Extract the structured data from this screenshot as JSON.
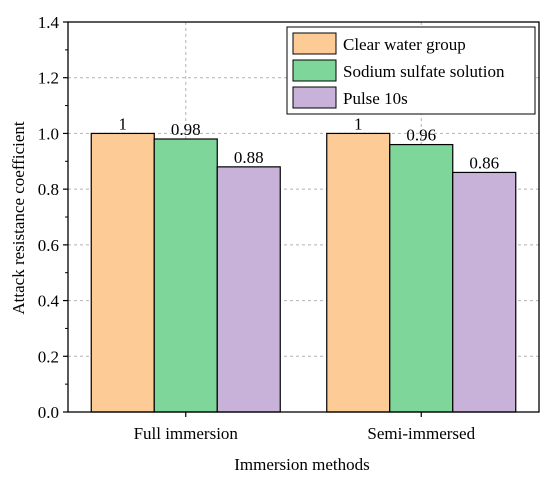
{
  "chart_data": {
    "type": "bar",
    "title": "",
    "xlabel": "Immersion methods",
    "ylabel": "Attack resistance coefficient",
    "ylim": [
      0,
      1.4
    ],
    "yticks": [
      0.0,
      0.2,
      0.4,
      0.6,
      0.8,
      1.0,
      1.2,
      1.4
    ],
    "ytick_labels": [
      "0.0",
      "0.2",
      "0.4",
      "0.6",
      "0.8",
      "1.0",
      "1.2",
      "1.4"
    ],
    "grid": true,
    "legend_position": "top-right",
    "categories": [
      "Full immersion",
      "Semi-immersed"
    ],
    "series": [
      {
        "name": "Clear water group",
        "color": "#FDCB96",
        "values": [
          1,
          1
        ],
        "labels": [
          "1",
          "1"
        ]
      },
      {
        "name": "Sodium sulfate solution",
        "color": "#7FD69A",
        "values": [
          0.98,
          0.96
        ],
        "labels": [
          "0.98",
          "0.96"
        ]
      },
      {
        "name": "Pulse 10s",
        "color": "#C9B2D9",
        "values": [
          0.88,
          0.86
        ],
        "labels": [
          "0.88",
          "0.86"
        ]
      }
    ]
  }
}
